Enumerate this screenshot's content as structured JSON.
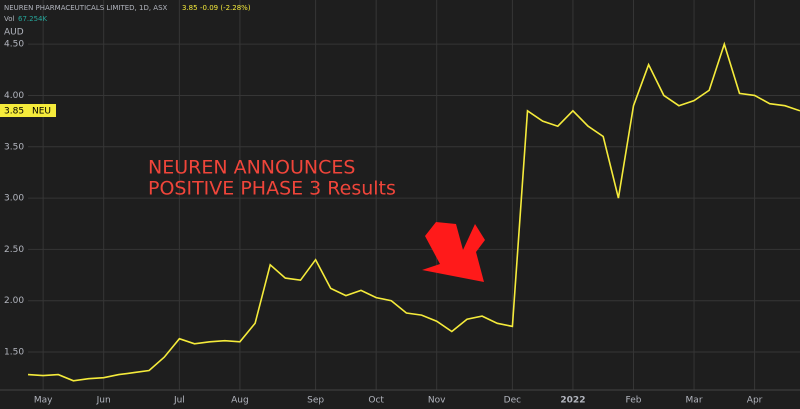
{
  "header": {
    "symbol": "NEUREN PHARMACEUTICALS LIMITED, 1D, ASX",
    "price": "3.85",
    "change": "-0.09 (-2.28%)",
    "volume_label": "Vol",
    "volume": "67.254K",
    "currency": "AUD",
    "price_tag": "3.85",
    "ticker": "NEU"
  },
  "chart_data": {
    "type": "line",
    "annotations": [
      "NEUREN ANNOUNCES",
      "POSITIVE PHASE 3 Results"
    ],
    "categories": [
      null,
      "May",
      null,
      null,
      null,
      "Jun",
      null,
      null,
      null,
      null,
      "Jul",
      null,
      null,
      null,
      "Aug",
      null,
      null,
      null,
      null,
      "Sep",
      null,
      null,
      null,
      "Oct",
      null,
      null,
      null,
      "Nov",
      null,
      null,
      null,
      null,
      "Dec",
      null,
      null,
      null,
      "2022",
      null,
      null,
      null,
      "Feb",
      null,
      null,
      null,
      "Mar",
      null,
      null,
      null,
      "Apr",
      null,
      null,
      null
    ],
    "series": [
      {
        "name": "NEU",
        "color": "#f5eb3b",
        "values": [
          1.28,
          1.27,
          1.28,
          1.22,
          1.24,
          1.25,
          1.28,
          1.3,
          1.32,
          1.45,
          1.63,
          1.58,
          1.6,
          1.61,
          1.6,
          1.78,
          2.35,
          2.22,
          2.2,
          2.4,
          2.12,
          2.05,
          2.1,
          2.03,
          2.0,
          1.88,
          1.86,
          1.8,
          1.7,
          1.82,
          1.85,
          1.78,
          1.75,
          3.85,
          3.75,
          3.7,
          3.85,
          3.7,
          3.6,
          3.0,
          3.9,
          4.3,
          4.0,
          3.9,
          3.95,
          4.05,
          4.5,
          4.02,
          4.0,
          3.92,
          3.9,
          3.85
        ]
      }
    ],
    "ylim": [
      1.13,
      4.93
    ],
    "yticks": [
      {
        "value": 1.5,
        "label": "1.50"
      },
      {
        "value": 2,
        "label": "2.00"
      },
      {
        "value": 2.5,
        "label": "2.50"
      },
      {
        "value": 3,
        "label": "3.00"
      },
      {
        "value": 3.5,
        "label": "3.50"
      },
      {
        "value": 4,
        "label": "4.00"
      },
      {
        "value": 4.5,
        "label": "4.50"
      }
    ],
    "grid": true
  }
}
